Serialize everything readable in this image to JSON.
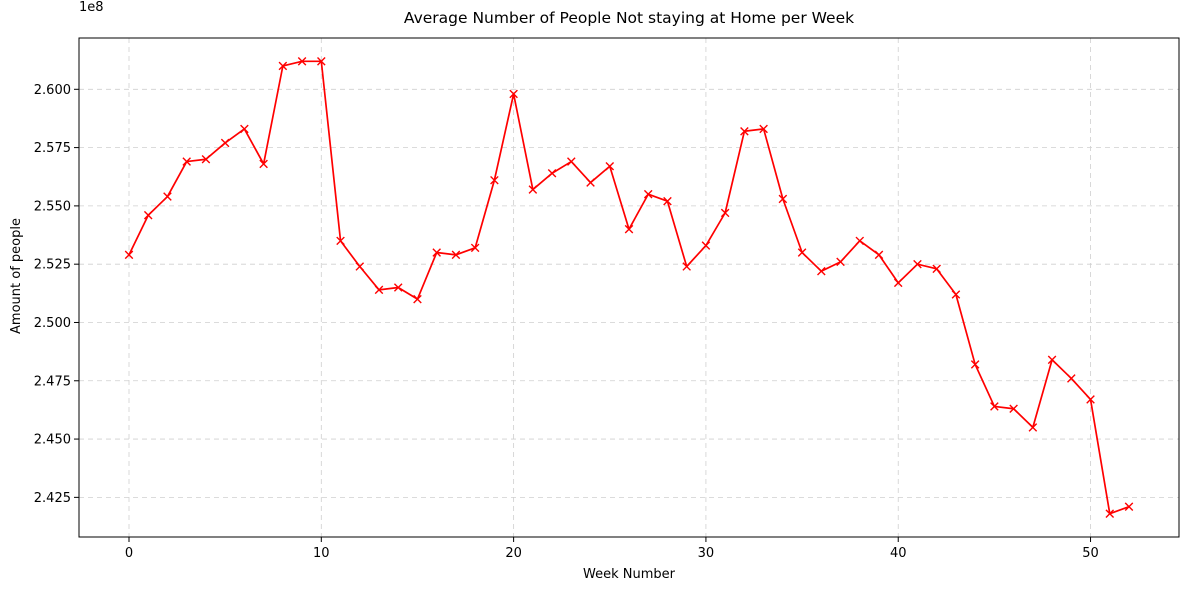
{
  "chart_data": {
    "type": "line",
    "title": "Average Number of People Not staying at Home per Week",
    "xlabel": "Week Number",
    "ylabel": "Amount of people",
    "y_offset_label": "1e8",
    "xlim": [
      -2.6,
      54.6
    ],
    "ylim": [
      2.408,
      2.622
    ],
    "x_ticks": [
      0,
      10,
      20,
      30,
      40,
      50
    ],
    "x_tick_labels": [
      "0",
      "10",
      "20",
      "30",
      "40",
      "50"
    ],
    "y_ticks": [
      2.425,
      2.45,
      2.475,
      2.5,
      2.525,
      2.55,
      2.575,
      2.6
    ],
    "y_tick_labels": [
      "2.425",
      "2.450",
      "2.475",
      "2.500",
      "2.525",
      "2.550",
      "2.575",
      "2.600"
    ],
    "grid": true,
    "series": [
      {
        "color": "#ff0000",
        "marker": "x",
        "x": [
          0,
          1,
          2,
          3,
          4,
          5,
          6,
          7,
          8,
          9,
          10,
          11,
          12,
          13,
          14,
          15,
          16,
          17,
          18,
          19,
          20,
          21,
          22,
          23,
          24,
          25,
          26,
          27,
          28,
          29,
          30,
          31,
          32,
          33,
          34,
          35,
          36,
          37,
          38,
          39,
          40,
          41,
          42,
          43,
          44,
          45,
          46,
          47,
          48,
          49,
          50,
          51,
          52
        ],
        "values": [
          2.529,
          2.546,
          2.554,
          2.569,
          2.57,
          2.577,
          2.583,
          2.568,
          2.61,
          2.612,
          2.612,
          2.535,
          2.524,
          2.514,
          2.515,
          2.51,
          2.53,
          2.529,
          2.532,
          2.561,
          2.598,
          2.557,
          2.564,
          2.569,
          2.56,
          2.567,
          2.54,
          2.555,
          2.552,
          2.524,
          2.533,
          2.547,
          2.582,
          2.583,
          2.553,
          2.53,
          2.522,
          2.526,
          2.535,
          2.529,
          2.517,
          2.525,
          2.523,
          2.512,
          2.482,
          2.464,
          2.463,
          2.455,
          2.484,
          2.476,
          2.467,
          2.418,
          2.421
        ]
      }
    ]
  }
}
